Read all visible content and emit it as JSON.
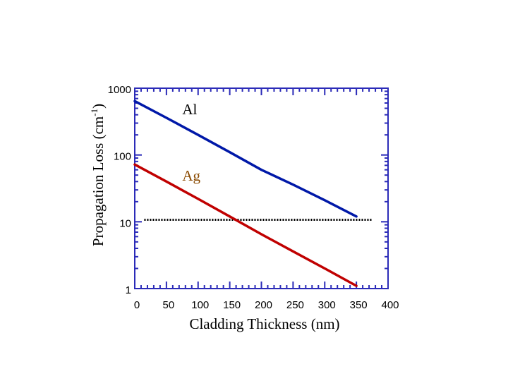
{
  "chart_data": {
    "type": "line",
    "xlabel": "Cladding Thickness (nm)",
    "ylabel_main": "Propagation Loss (cm",
    "ylabel_sup": "-1",
    "ylabel_end": ")",
    "xlim": [
      0,
      400
    ],
    "ylim": [
      1,
      1000
    ],
    "yscale": "log",
    "x_ticks": [
      0,
      50,
      100,
      150,
      200,
      250,
      300,
      350,
      400
    ],
    "x_tick_labels": [
      "0",
      "50",
      "100",
      "150",
      "200",
      "250",
      "300",
      "350",
      "400"
    ],
    "y_ticks": [
      1,
      10,
      100,
      1000
    ],
    "y_tick_labels": [
      "1",
      "10",
      "100",
      "1000"
    ],
    "series": [
      {
        "name": "Al",
        "color": "#0018a8",
        "x": [
          0,
          50,
          100,
          150,
          200,
          250,
          300,
          350
        ],
        "y": [
          640,
          360,
          200,
          110,
          60,
          36,
          21,
          12
        ],
        "label_x": 75,
        "label_y": 480
      },
      {
        "name": "Ag",
        "color": "#c00000",
        "x": [
          0,
          50,
          100,
          150,
          200,
          250,
          300,
          350
        ],
        "y": [
          72,
          40,
          22,
          12,
          6.5,
          3.6,
          2.0,
          1.1
        ],
        "label_x": 75,
        "label_y": 49
      }
    ],
    "reference_line": {
      "y": 10.7,
      "x_start": 15,
      "x_end": 375,
      "style": "dotted",
      "color": "#000000"
    }
  }
}
